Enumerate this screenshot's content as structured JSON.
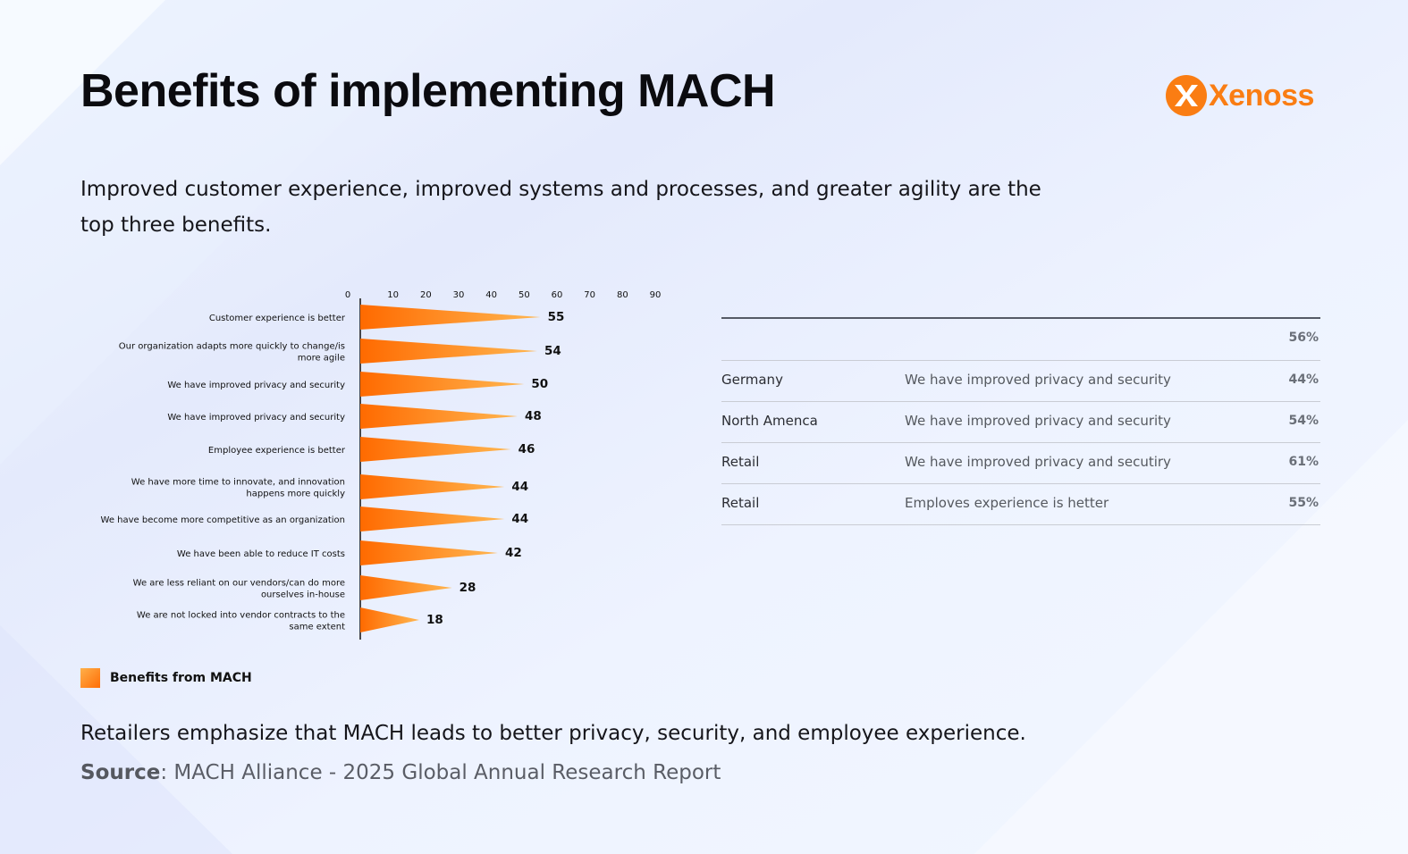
{
  "header": {
    "title": "Benefits of implementing MACH",
    "logo_text": "Xenoss",
    "subtitle": "Improved customer experience, improved systems and processes, and greater agility are the top three benefits."
  },
  "colors": {
    "accent": "#fa7d13",
    "bar_start": "#ff6a00",
    "bar_end": "#ffb650"
  },
  "chart_data": {
    "type": "bar",
    "orientation": "horizontal",
    "categories": [
      [
        "Customer experience is better"
      ],
      [
        "Our organization adapts more quickly to change/is",
        "more agile"
      ],
      [
        "We have improved privacy and security"
      ],
      [
        "We have improved privacy and security"
      ],
      [
        "Employee experience is better"
      ],
      [
        "We have more time to innovate, and innovation",
        "happens more quickly"
      ],
      [
        "We have become more competitive as an organization"
      ],
      [
        "We have been able to reduce IT costs"
      ],
      [
        "We are less reliant on our vendors/can do more",
        "ourselves in-house"
      ],
      [
        "We are not locked into vendor contracts to the",
        "same extent"
      ]
    ],
    "series": [
      {
        "name": "Benefits from MACH",
        "values": [
          55,
          54,
          50,
          48,
          46,
          44,
          44,
          42,
          28,
          18
        ]
      }
    ],
    "x_ticks": [
      0,
      10,
      20,
      30,
      40,
      50,
      60,
      70,
      80,
      90
    ],
    "xlim": [
      0,
      90
    ],
    "grid": false,
    "legend_position": "bottom-left"
  },
  "legend": {
    "label": "Benefits from MACH"
  },
  "table": {
    "rows": [
      {
        "region": "",
        "benefit": "",
        "value": "56%"
      },
      {
        "region": "Germany",
        "benefit": "We have improved privacy and security",
        "value": "44%"
      },
      {
        "region": "North Amenca",
        "benefit": "We have improved privacy and security",
        "value": "54%"
      },
      {
        "region": "Retail",
        "benefit": "We have improved privacy and secutiry",
        "value": "61%"
      },
      {
        "region": "Retail",
        "benefit": "Emploves experience is hetter",
        "value": "55%"
      }
    ]
  },
  "footer": {
    "note": "Retailers emphasize that MACH leads to better privacy, security, and employee experience.",
    "source_label": "Source",
    "source_text": ": MACH Alliance - 2025 Global Annual Research Report"
  }
}
